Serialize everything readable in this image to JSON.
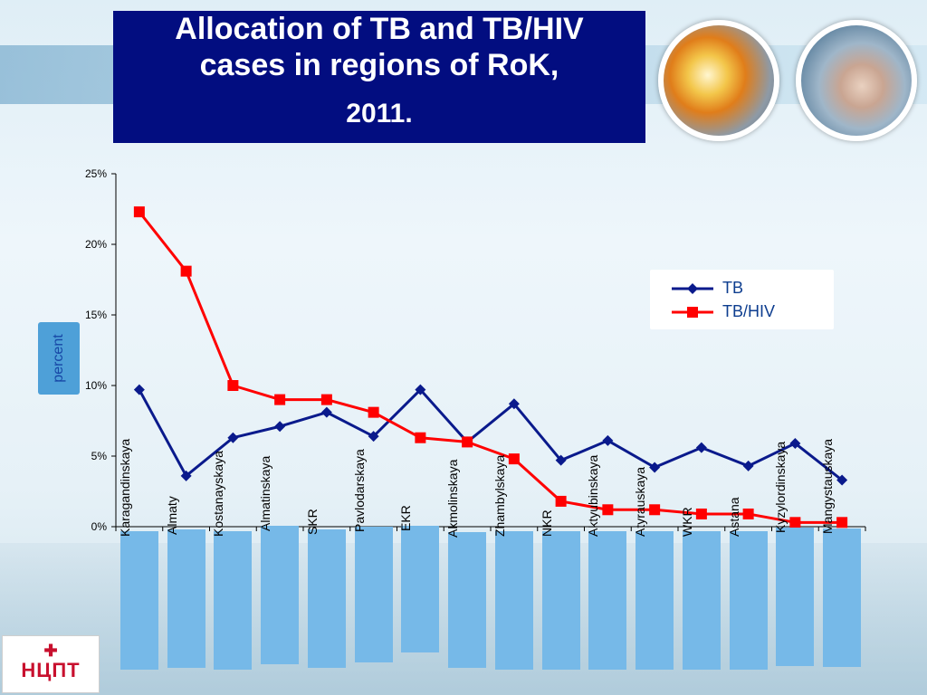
{
  "slide": {
    "title_lines": [
      "Allocation of TB and TB/HIV",
      "cases in regions of RoK,",
      "2011."
    ],
    "logo_text": "НЦПТ",
    "logo_icon": "medical-cross-emblem-icon"
  },
  "chart_data": {
    "type": "line",
    "title": "",
    "xlabel": "",
    "ylabel": "percent",
    "ylim": [
      0,
      25
    ],
    "yticks": [
      "0%",
      "5%",
      "10%",
      "15%",
      "20%",
      "25%"
    ],
    "legend_position": "right",
    "categories": [
      "Karagandinskaya",
      "Almaty",
      "Kostanayskaya",
      "Almatinskaya",
      "SKR",
      "Pavlodarskaya",
      "EKR",
      "Akmolinskaya",
      "Zhambylskaya",
      "NKR",
      "Aktyubinskaya",
      "Atyrauskaya",
      "WKR",
      "Astana",
      "Kyzylordinskaya",
      "Mangystauskaya"
    ],
    "series": [
      {
        "name": "TB",
        "color": "#0a1a8c",
        "marker": "diamond",
        "values": [
          9.7,
          3.6,
          6.3,
          7.1,
          8.1,
          6.4,
          9.7,
          6.0,
          8.7,
          4.7,
          6.1,
          4.2,
          5.6,
          4.3,
          5.9,
          3.3
        ]
      },
      {
        "name": "TB/HIV",
        "color": "#ff0000",
        "marker": "square",
        "values": [
          22.3,
          18.1,
          10.0,
          9.0,
          9.0,
          8.1,
          6.3,
          6.0,
          4.8,
          1.8,
          1.2,
          1.2,
          0.9,
          0.9,
          0.3,
          0.3
        ]
      }
    ]
  }
}
